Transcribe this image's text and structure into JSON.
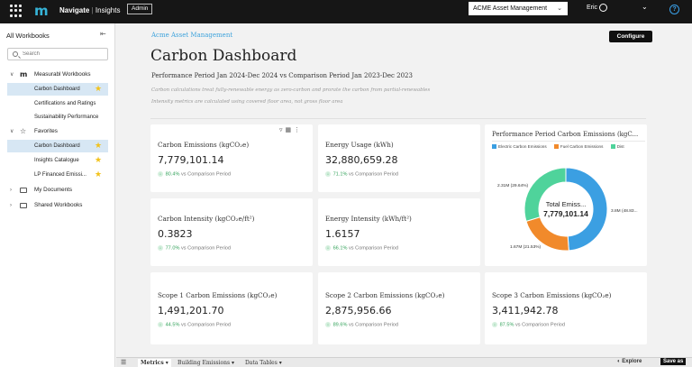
{
  "topbar": {
    "brand": "Navigate",
    "separator": "|",
    "product": "Insights",
    "admin_badge": "Admin",
    "org_select": "ACME Asset Management",
    "user": "Eric",
    "help": "?"
  },
  "sidebar": {
    "title": "All Workbooks",
    "search_placeholder": "Search",
    "groups": {
      "measurabl": "Measurabl Workbooks",
      "favorites": "Favorites",
      "my_documents": "My Documents",
      "shared": "Shared Workbooks"
    },
    "measurabl_items": [
      "Carbon Dashboard",
      "Certifications and Ratings",
      "Sustainability Performance"
    ],
    "favorite_items": [
      "Carbon Dashboard",
      "Insights Catalogue",
      "LP Financed Emissi..."
    ]
  },
  "main": {
    "org_link": "Acme Asset Management",
    "configure": "Configure",
    "title": "Carbon Dashboard",
    "period": "Performance Period Jan 2024-Dec 2024 vs Comparison Period Jan 2023-Dec 2023",
    "note1": "Carbon calculations treat fully-renewable energy as zero-carbon and prorate the carbon from partial-renewables",
    "note2": "Intensity metrics are calculated using covered floor area, not gross floor area",
    "vs_label": "vs Comparison Period",
    "cards": [
      {
        "title": "Carbon Emissions (kgCO₂e)",
        "value": "7,779,101.14",
        "delta": "80.4%"
      },
      {
        "title": "Energy Usage (kWh)",
        "value": "32,880,659.28",
        "delta": "71.1%"
      },
      {
        "title": "Carbon Intensity (kgCO₂e/ft²)",
        "value": "0.3823",
        "delta": "77.0%"
      },
      {
        "title": "Energy Intensity (kWh/ft²)",
        "value": "1.6157",
        "delta": "66.1%"
      },
      {
        "title": "Scope 1 Carbon Emissions (kgCO₂e)",
        "value": "1,491,201.70",
        "delta": "44.5%"
      },
      {
        "title": "Scope 2 Carbon Emissions (kgCO₂e)",
        "value": "2,875,956.66",
        "delta": "89.6%"
      },
      {
        "title": "Scope 3 Carbon Emissions (kgCO₂e)",
        "value": "3,411,942.78",
        "delta": "87.5%"
      }
    ]
  },
  "chart_data": {
    "type": "pie",
    "title": "Performance Period Carbon Emissions (kgC...",
    "center_label": "Total Emiss...",
    "center_value": "7,779,101.14",
    "legend": [
      "Electric Carbon Emissions",
      "Fuel Carbon Emissions",
      "Dist"
    ],
    "colors": [
      "#3b9fe2",
      "#f18a2b",
      "#4fd39b"
    ],
    "values": [
      3.8,
      1.67,
      2.31
    ],
    "labels": [
      "3.8M (48.83...",
      "1.67M (21.53%)",
      "2.31M (29.64%)"
    ]
  },
  "bottombar": {
    "tabs": [
      "Metrics",
      "Building Emissions",
      "Data Tables"
    ],
    "explore": "Explore",
    "save_as": "Save as"
  }
}
